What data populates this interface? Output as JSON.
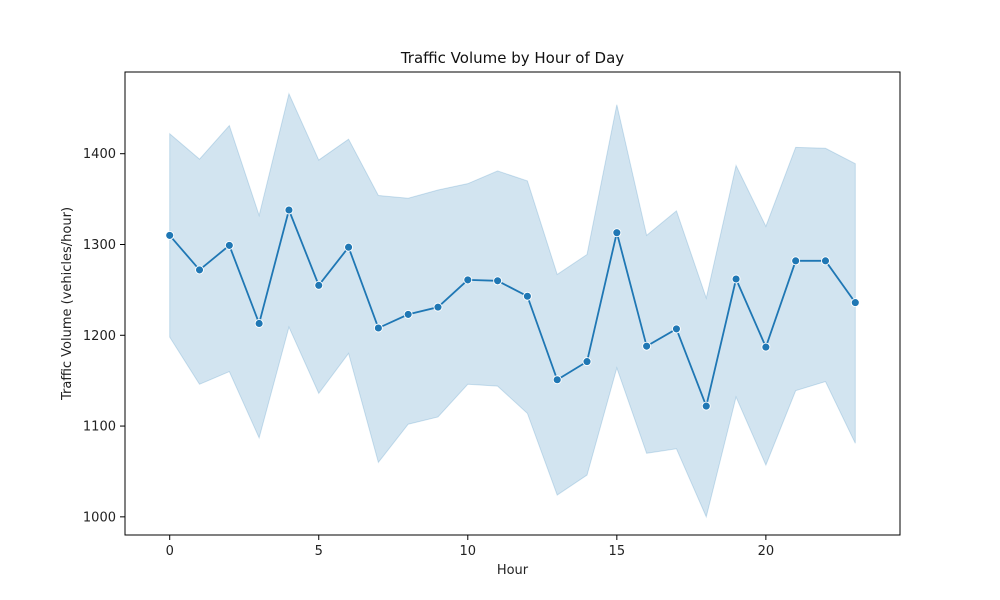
{
  "chart_data": {
    "type": "line",
    "title": "Traffic Volume by Hour of Day",
    "xlabel": "Hour",
    "ylabel": "Traffic Volume (vehicles/hour)",
    "xlim": [
      -1.5,
      24.5
    ],
    "ylim": [
      980,
      1490
    ],
    "xticks": [
      0,
      5,
      10,
      15,
      20
    ],
    "yticks": [
      1000,
      1100,
      1200,
      1300,
      1400
    ],
    "grid": false,
    "series": [
      {
        "color": "#1f77b4",
        "band_color": "#1f77b4",
        "x": [
          0,
          1,
          2,
          3,
          4,
          5,
          6,
          7,
          8,
          9,
          10,
          11,
          12,
          13,
          14,
          15,
          16,
          17,
          18,
          19,
          20,
          21,
          22,
          23
        ],
        "values": [
          1310,
          1272,
          1299,
          1213,
          1338,
          1255,
          1297,
          1208,
          1223,
          1231,
          1261,
          1260,
          1243,
          1151,
          1171,
          1313,
          1188,
          1207,
          1122,
          1262,
          1187,
          1282,
          1282,
          1236
        ],
        "upper": [
          1422,
          1394,
          1431,
          1332,
          1466,
          1393,
          1416,
          1354,
          1351,
          1360,
          1367,
          1381,
          1370,
          1267,
          1289,
          1454,
          1310,
          1337,
          1241,
          1387,
          1320,
          1407,
          1406,
          1389
        ],
        "lower": [
          1198,
          1146,
          1160,
          1087,
          1209,
          1136,
          1180,
          1060,
          1102,
          1110,
          1146,
          1144,
          1114,
          1024,
          1046,
          1164,
          1070,
          1075,
          1000,
          1132,
          1057,
          1139,
          1149,
          1081
        ]
      }
    ]
  }
}
